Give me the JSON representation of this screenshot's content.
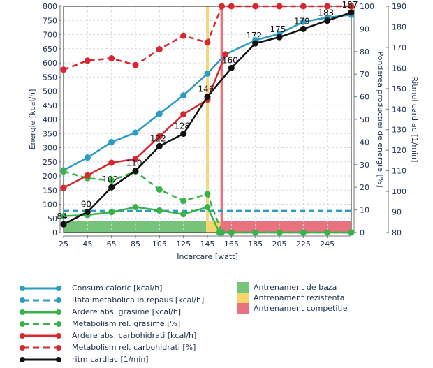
{
  "chart_data": {
    "type": "line",
    "title": "",
    "xlabel": "Incarcare [watt]",
    "ylabel_left": "Energie [kcal/h]",
    "ylabel_right1": "Ponderea productiei de energie [%]",
    "ylabel_right2": "Ritmul cardiac [1/min]",
    "x_ticks": [
      25,
      45,
      65,
      85,
      105,
      125,
      145,
      165,
      185,
      205,
      225,
      245
    ],
    "xlim": [
      25,
      265
    ],
    "ylim_left": [
      0,
      800
    ],
    "yticks_left": [
      0,
      50,
      100,
      150,
      200,
      250,
      300,
      350,
      400,
      450,
      500,
      550,
      600,
      650,
      700,
      750,
      800
    ],
    "ylim_pct": [
      0,
      100
    ],
    "yticks_pct": [
      0,
      10,
      20,
      30,
      40,
      50,
      60,
      70,
      80,
      90,
      100
    ],
    "ylim_hr": [
      80,
      190
    ],
    "yticks_hr": [
      80,
      90,
      100,
      110,
      120,
      130,
      140,
      150,
      160,
      170,
      180,
      190
    ],
    "grid": true,
    "zones": [
      {
        "name": "Antrenament de baza",
        "from": 25,
        "to": 145,
        "color": "#76c47a"
      },
      {
        "name": "Antrenament rezistenta",
        "from": 145,
        "to": 157,
        "color": "#f8d66d"
      },
      {
        "name": "Antrenament competitie",
        "from": 157,
        "to": 265,
        "color": "#e8737f"
      }
    ],
    "zone_band_height_kcal": 40,
    "zone_lines": [
      {
        "x": 145,
        "color": "#f8d66d"
      },
      {
        "x": 157,
        "color": "#e8737f"
      }
    ],
    "series": [
      {
        "name": "Consum caloric [kcal/h]",
        "axis": "left",
        "color": "#2b9cc3",
        "dash": false,
        "x": [
          25,
          45,
          65,
          85,
          105,
          125,
          145,
          160,
          185,
          205,
          225,
          245,
          265
        ],
        "y": [
          220,
          265,
          320,
          353,
          420,
          485,
          562,
          630,
          680,
          703,
          745,
          760,
          770
        ]
      },
      {
        "name": "Rata metabolica in repaus [kcal/h]",
        "axis": "left",
        "color": "#2b9cc3",
        "dash": true,
        "markers": false,
        "x": [
          25,
          265
        ],
        "y": [
          77,
          77
        ]
      },
      {
        "name": "Ardere abs. grasime [kcal/h]",
        "axis": "left",
        "color": "#37b34a",
        "dash": false,
        "x": [
          25,
          45,
          65,
          85,
          105,
          125,
          145,
          155,
          165,
          185,
          205,
          225,
          245,
          265
        ],
        "y": [
          58,
          62,
          72,
          90,
          78,
          65,
          90,
          0,
          0,
          0,
          0,
          0,
          0,
          0
        ]
      },
      {
        "name": "Metabolism rel. grasime [%]",
        "axis": "pct",
        "color": "#37b34a",
        "dash": true,
        "x": [
          25,
          45,
          65,
          85,
          105,
          125,
          145,
          157,
          165,
          185,
          205,
          225,
          245,
          265
        ],
        "y": [
          27,
          24,
          23,
          27,
          19,
          14,
          17,
          0,
          0,
          0,
          0,
          0,
          0,
          0
        ]
      },
      {
        "name": "Ardere abs. carbohidrati [kcal/h]",
        "axis": "left",
        "color": "#d7282f",
        "dash": false,
        "x": [
          25,
          45,
          65,
          85,
          105,
          125,
          145,
          160
        ],
        "y": [
          158,
          202,
          247,
          260,
          340,
          418,
          470,
          630
        ]
      },
      {
        "name": "Metabolism rel. carbohidrati [%]",
        "axis": "pct",
        "color": "#d7282f",
        "dash": true,
        "x": [
          25,
          45,
          65,
          85,
          105,
          125,
          145,
          157,
          165,
          185,
          205,
          225,
          245,
          265
        ],
        "y": [
          72,
          76,
          77,
          74,
          81,
          87,
          84,
          100,
          100,
          100,
          100,
          100,
          100,
          100
        ]
      },
      {
        "name": "ritm cardiac [1/min]",
        "axis": "hr",
        "color": "#111111",
        "dash": false,
        "x": [
          25,
          45,
          65,
          85,
          105,
          125,
          145,
          165,
          185,
          205,
          225,
          245,
          265
        ],
        "y": [
          84,
          90,
          102,
          110,
          122,
          128,
          146,
          160,
          172,
          175,
          179,
          183,
          187
        ],
        "labels": [
          "84",
          "90",
          "102",
          "110",
          "122",
          "128",
          "146",
          "160",
          "172",
          "175",
          "179",
          "183",
          "187"
        ]
      }
    ]
  },
  "legend": {
    "lines": [
      {
        "label": "Consum caloric [kcal/h]",
        "color": "#2b9cc3",
        "dash": false
      },
      {
        "label": "Rata metabolica in repaus [kcal/h]",
        "color": "#2b9cc3",
        "dash": true
      },
      {
        "label": "Ardere abs. grasime [kcal/h]",
        "color": "#37b34a",
        "dash": false
      },
      {
        "label": "Metabolism rel. grasime [%]",
        "color": "#37b34a",
        "dash": true
      },
      {
        "label": "Ardere abs. carbohidrati [kcal/h]",
        "color": "#d7282f",
        "dash": false
      },
      {
        "label": "Metabolism rel. carbohidrati [%]",
        "color": "#d7282f",
        "dash": true
      },
      {
        "label": "ritm cardiac [1/min]",
        "color": "#111111",
        "dash": false
      }
    ],
    "zones": [
      {
        "label": "Antrenament de baza",
        "color": "#76c47a"
      },
      {
        "label": "Antrenament rezistenta",
        "color": "#f8d66d"
      },
      {
        "label": "Antrenament competitie",
        "color": "#e8737f"
      }
    ]
  }
}
